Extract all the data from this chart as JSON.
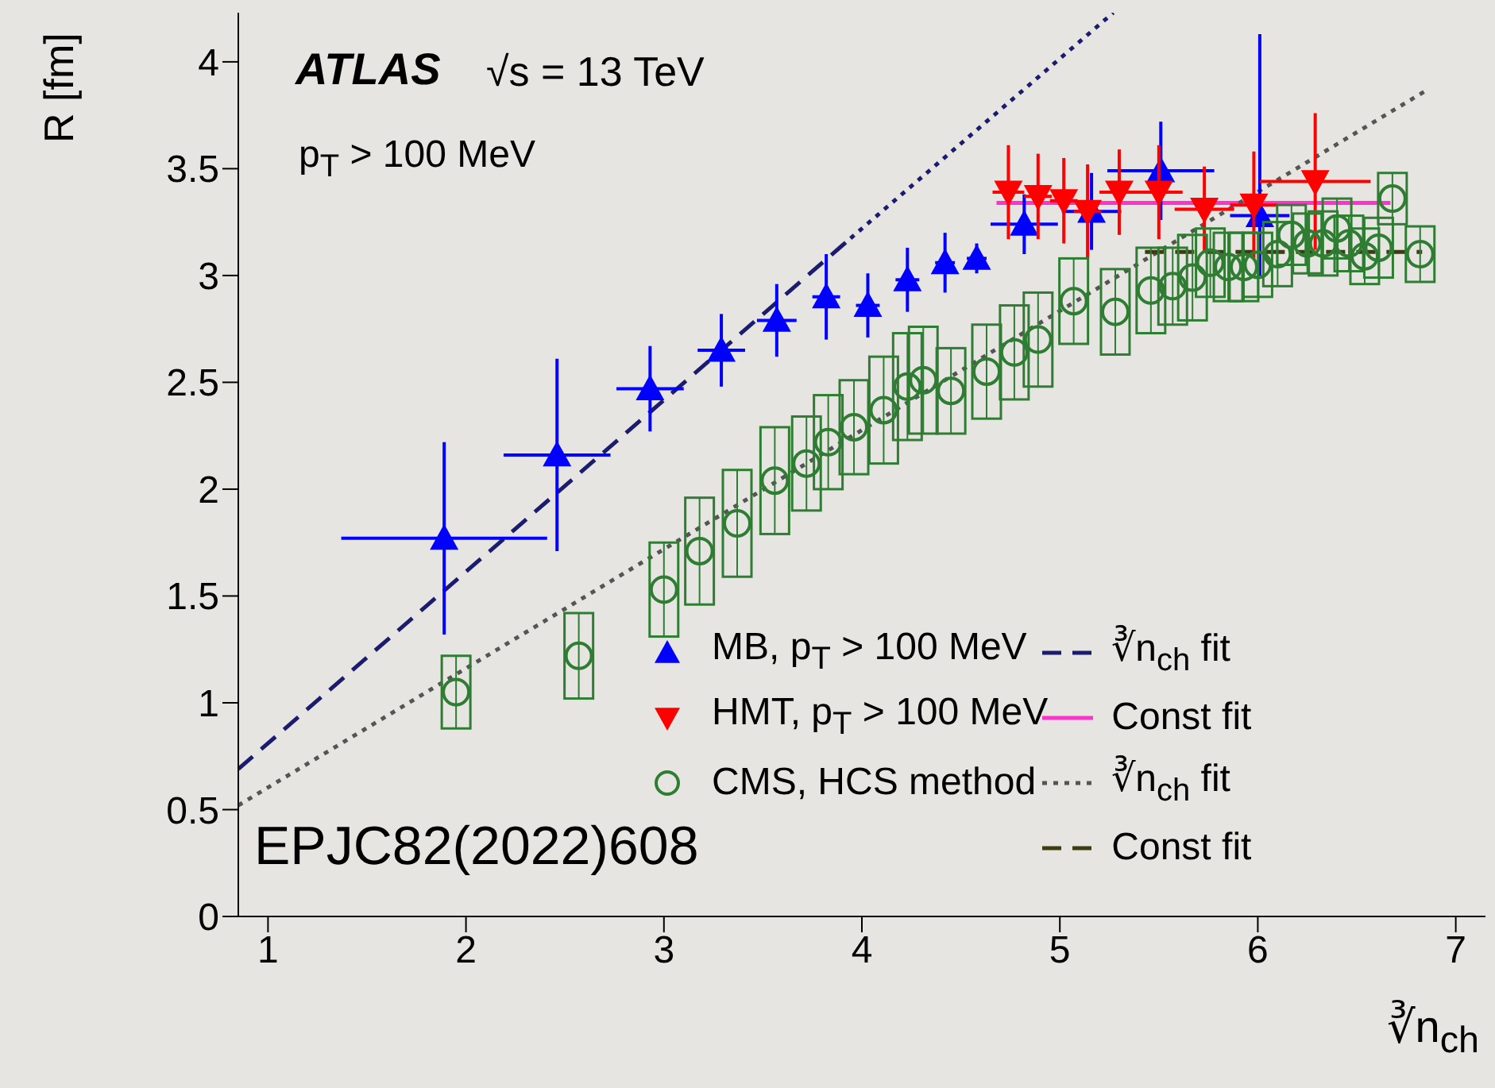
{
  "chart_data": {
    "type": "scatter",
    "xlabel": "∛n$_{ch}$",
    "ylabel": "R [fm]",
    "xlim": [
      0.85,
      7.15
    ],
    "ylim": [
      0,
      4.23
    ],
    "xticks": [
      1,
      2,
      3,
      4,
      5,
      6,
      7
    ],
    "yticks": [
      0,
      0.5,
      1,
      1.5,
      2,
      2.5,
      3,
      3.5,
      4
    ],
    "legend": "bottom right",
    "annotations": [
      "ATLAS",
      "√s = 13 TeV",
      "p$_{T}$ > 100 MeV",
      "EPJC82(2022)608"
    ],
    "series": [
      {
        "name": "MB, p$_{T}$ > 100 MeV",
        "color": "#0000ff",
        "marker": "triangle",
        "x": [
          1.89,
          2.46,
          2.93,
          3.29,
          3.57,
          3.82,
          4.03,
          4.23,
          4.42,
          4.58,
          4.82,
          5.16,
          5.51,
          6.01
        ],
        "values": [
          1.77,
          2.16,
          2.47,
          2.65,
          2.79,
          2.9,
          2.86,
          2.98,
          3.06,
          3.08,
          3.24,
          3.3,
          3.49,
          3.28
        ],
        "errors": [
          0.45,
          0.45,
          0.2,
          0.17,
          0.17,
          0.2,
          0.15,
          0.15,
          0.14,
          0.07,
          0.14,
          0.18,
          0.23,
          [
            3.0,
            4.13
          ]
        ],
        "xerrors": [
          0.52,
          0.27,
          0.17,
          0.12,
          0.1,
          0.07,
          0.06,
          0.06,
          0.05,
          0.05,
          0.17,
          0.15,
          0.27,
          0.15
        ]
      },
      {
        "name": "HMT, p$_{T}$ > 100 MeV",
        "color": "#ff0000",
        "marker": "triangle-down",
        "x": [
          4.74,
          4.89,
          5.02,
          5.14,
          5.3,
          5.5,
          5.73,
          5.98,
          6.29
        ],
        "values": [
          3.39,
          3.37,
          3.35,
          3.3,
          3.39,
          3.39,
          3.31,
          3.33,
          3.44
        ],
        "errors": [
          0.22,
          0.2,
          0.2,
          0.22,
          0.2,
          0.22,
          0.2,
          0.25,
          0.32
        ],
        "xerrors": [
          0.08,
          0.07,
          0.07,
          0.07,
          0.1,
          0.12,
          0.15,
          0.12,
          0.28
        ]
      },
      {
        "name": "CMS, HCS method",
        "color": "#2e7d32",
        "marker": "circle",
        "x": [
          1.95,
          2.57,
          3.0,
          3.18,
          3.37,
          3.56,
          3.72,
          3.83,
          3.96,
          4.11,
          4.23,
          4.31,
          4.45,
          4.63,
          4.77,
          4.89,
          5.07,
          5.28,
          5.46,
          5.57,
          5.67,
          5.76,
          5.85,
          5.93,
          6.0,
          6.1,
          6.17,
          6.25,
          6.33,
          6.4,
          6.46,
          6.54,
          6.61,
          6.68,
          6.82
        ],
        "values": [
          1.05,
          1.22,
          1.53,
          1.71,
          1.84,
          2.04,
          2.12,
          2.22,
          2.29,
          2.37,
          2.48,
          2.51,
          2.46,
          2.55,
          2.64,
          2.7,
          2.88,
          2.83,
          2.93,
          2.95,
          2.99,
          3.06,
          3.04,
          3.04,
          3.05,
          3.1,
          3.19,
          3.15,
          3.15,
          3.22,
          3.15,
          3.09,
          3.13,
          3.36,
          3.1
        ],
        "errors": [
          0.17,
          0.2,
          0.22,
          0.25,
          0.25,
          0.25,
          0.22,
          0.22,
          0.22,
          0.25,
          0.25,
          0.25,
          0.2,
          0.22,
          0.22,
          0.22,
          0.2,
          0.2,
          0.2,
          0.18,
          0.2,
          0.16,
          0.16,
          0.16,
          0.15,
          0.15,
          0.14,
          0.14,
          0.15,
          0.14,
          0.13,
          0.13,
          0.14,
          0.12,
          0.13
        ]
      },
      {
        "type": "line",
        "name": "∛n$_{ch}$ fit",
        "color": "#1c1c6e",
        "line_style": [
          "dashed",
          "dotted"
        ],
        "x": [
          0.85,
          3.9,
          5.27
        ],
        "values": [
          0.69,
          3.14,
          4.23
        ]
      },
      {
        "type": "line",
        "name": "Const fit",
        "color": "#ff33cc",
        "line_style": "solid",
        "x": [
          4.68,
          6.67
        ],
        "values": [
          3.34,
          3.34
        ]
      },
      {
        "type": "line",
        "name": "∛n$_{ch}$ fit",
        "color": "#555555",
        "line_style": "dotted",
        "x": [
          0.85,
          6.84
        ],
        "values": [
          0.52,
          3.86
        ]
      },
      {
        "type": "line",
        "name": "Const fit",
        "color": "#3d3d10",
        "line_style": "dashed",
        "x": [
          5.43,
          6.83
        ],
        "values": [
          3.11,
          3.11
        ]
      }
    ]
  }
}
